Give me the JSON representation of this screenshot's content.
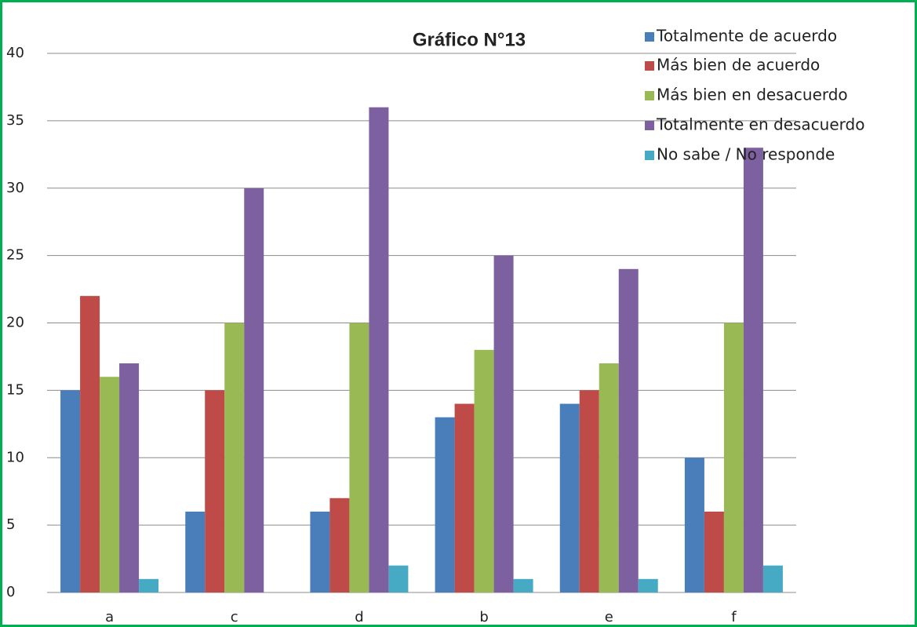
{
  "chart_data": {
    "type": "bar",
    "title": "Gráfico N°13",
    "categories": [
      "a",
      "c",
      "d",
      "b",
      "e",
      "f"
    ],
    "series": [
      {
        "name": "Totalmente de acuerdo",
        "color": "#4a7ebb",
        "values": [
          15,
          6,
          6,
          13,
          14,
          10
        ]
      },
      {
        "name": "Más bien de acuerdo",
        "color": "#be4b48",
        "values": [
          22,
          15,
          7,
          14,
          15,
          6
        ]
      },
      {
        "name": "Más bien en desacuerdo",
        "color": "#98b954",
        "values": [
          16,
          20,
          20,
          18,
          17,
          20
        ]
      },
      {
        "name": "Totalmente en desacuerdo",
        "color": "#7d60a0",
        "values": [
          17,
          30,
          36,
          25,
          24,
          33
        ]
      },
      {
        "name": "No sabe / No responde",
        "color": "#46aac5",
        "values": [
          1,
          0,
          2,
          1,
          1,
          2
        ]
      }
    ],
    "ylim": [
      0,
      40
    ],
    "yticks": [
      0,
      5,
      10,
      15,
      20,
      25,
      30,
      35,
      40
    ],
    "grid": true,
    "legend": "top-right"
  }
}
